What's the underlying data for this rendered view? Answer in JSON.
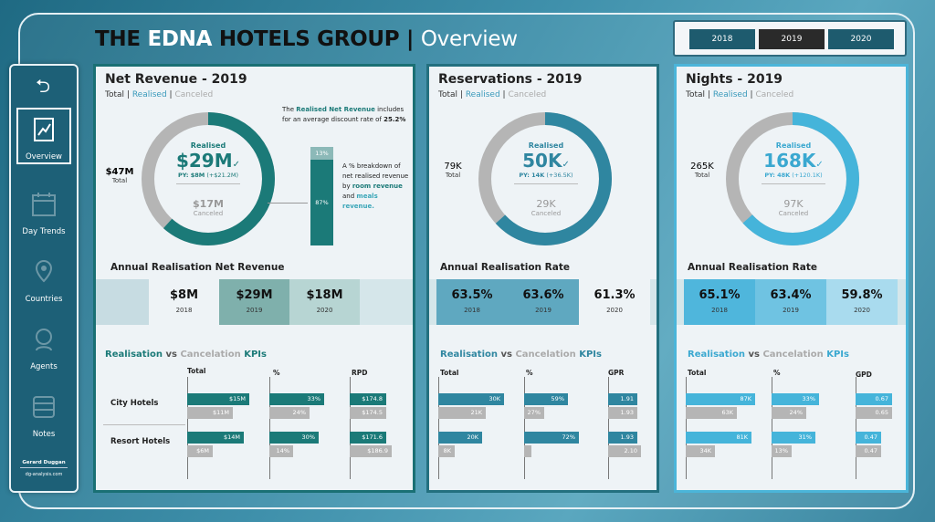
{
  "header": {
    "title_a": "THE",
    "title_b": "EDNA",
    "title_c": "HOTELS GROUP |",
    "title_d": "Overview"
  },
  "years": {
    "y2018": "2018",
    "y2019": "2019",
    "y2020": "2020",
    "selected": "2019"
  },
  "sidebar": {
    "back": "⮌",
    "items": [
      {
        "label": "Overview"
      },
      {
        "label": "Day Trends"
      },
      {
        "label": "Countries"
      },
      {
        "label": "Agents"
      },
      {
        "label": "Notes"
      }
    ],
    "author": "Gerard Duggan",
    "site": "dg-analysis.com"
  },
  "filters": {
    "total": "Total",
    "sep": "|",
    "realised": "Realised",
    "canceled": "Canceled"
  },
  "revenue": {
    "title": "Net Revenue - 2019",
    "total": "$47M",
    "total_label": "Total",
    "realised_label": "Realised",
    "realised": "$29M",
    "check": "✓",
    "py": "PY: $8M",
    "py_delta": "(+$21.2M)",
    "canceled": "$17M",
    "canceled_label": "Canceled",
    "note1a": "The",
    "note1b": "Realised Net Revenue",
    "note1c": "includes for an average discount rate of",
    "note1d": "25.2%",
    "note2a": "A % breakdown of net realised revenue by",
    "note2b": "room revenue",
    "note2c": "and",
    "note2d": "meals revenue.",
    "stack_top": "13%",
    "stack_bottom": "87%",
    "annual_title": "Annual Realisation Net Revenue",
    "annual": [
      {
        "v": "$8M",
        "y": "2018"
      },
      {
        "v": "$29M",
        "y": "2019"
      },
      {
        "v": "$18M",
        "y": "2020"
      }
    ],
    "kpi_a": "Realisation",
    "kpi_b": "vs",
    "kpi_c": "Cancelation",
    "kpi_d": "KPIs",
    "col1": "Total",
    "col2": "%",
    "col3": "RPD",
    "rows": [
      {
        "label": "City Hotels",
        "t1": "$15M",
        "t2": "$11M",
        "p1": "33%",
        "p2": "24%",
        "r1": "$174.8",
        "r2": "$174.5"
      },
      {
        "label": "Resort Hotels",
        "t1": "$14M",
        "t2": "$6M",
        "p1": "30%",
        "p2": "14%",
        "r1": "$171.6",
        "r2": "$186.9"
      }
    ]
  },
  "reservations": {
    "title": "Reservations - 2019",
    "total": "79K",
    "total_label": "Total",
    "realised_label": "Realised",
    "realised": "50K",
    "check": "✓",
    "py": "PY: 14K",
    "py_delta": "(+36.5K)",
    "canceled": "29K",
    "canceled_label": "Canceled",
    "annual_title": "Annual Realisation Rate",
    "annual": [
      {
        "v": "63.5%",
        "y": "2018"
      },
      {
        "v": "63.6%",
        "y": "2019"
      },
      {
        "v": "61.3%",
        "y": "2020"
      }
    ],
    "kpi_a": "Realisation",
    "kpi_b": "vs",
    "kpi_c": "Cancelation",
    "kpi_d": "KPIs",
    "col1": "Total",
    "col2": "%",
    "col3": "GPR",
    "rows": [
      {
        "t1": "30K",
        "t2": "21K",
        "p1": "59%",
        "p2": "27%",
        "r1": "1.91",
        "r2": "1.93"
      },
      {
        "t1": "20K",
        "t2": "8K",
        "p1": "72%",
        "p2": "",
        "r1": "1.93",
        "r2": "2.10"
      }
    ]
  },
  "nights": {
    "title": "Nights - 2019",
    "total": "265K",
    "total_label": "Total",
    "realised_label": "Realised",
    "realised": "168K",
    "check": "✓",
    "py": "PY: 48K",
    "py_delta": "(+120.1K)",
    "canceled": "97K",
    "canceled_label": "Canceled",
    "annual_title": "Annual Realisation Rate",
    "annual": [
      {
        "v": "65.1%",
        "y": "2018"
      },
      {
        "v": "63.4%",
        "y": "2019"
      },
      {
        "v": "59.8%",
        "y": "2020"
      }
    ],
    "kpi_a": "Realisation",
    "kpi_b": "vs",
    "kpi_c": "Cancelation",
    "kpi_d": "KPIs",
    "col1": "Total",
    "col2": "%",
    "col3": "GPD",
    "rows": [
      {
        "t1": "87K",
        "t2": "63K",
        "p1": "33%",
        "p2": "24%",
        "r1": "0.67",
        "r2": "0.65"
      },
      {
        "t1": "81K",
        "t2": "34K",
        "p1": "31%",
        "p2": "13%",
        "r1": "0.47",
        "r2": "0.47"
      }
    ]
  },
  "colors": {
    "teal": "#1b7a78",
    "steel": "#2f86a0",
    "sky": "#45b4da",
    "grey": "#b5b5b5"
  }
}
